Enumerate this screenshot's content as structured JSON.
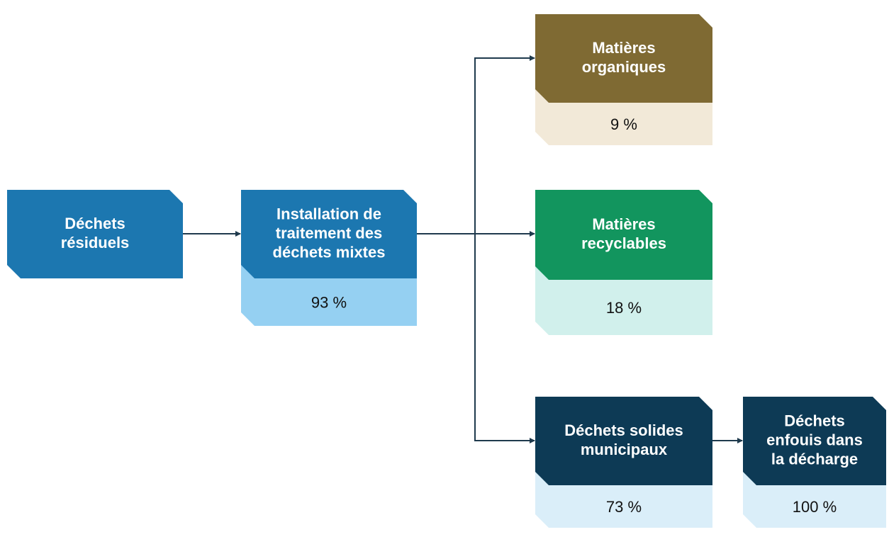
{
  "nodes": [
    {
      "label": [
        "Déchets",
        "résiduels"
      ]
    },
    {
      "label": [
        "Installation de",
        "traitement des",
        "déchets mixtes"
      ],
      "value": "93 %"
    },
    {
      "label": [
        "Matières",
        "organiques"
      ],
      "value": "9 %"
    },
    {
      "label": [
        "Matières",
        "recyclables"
      ],
      "value": "18 %"
    },
    {
      "label": [
        "Déchets solides",
        "municipaux"
      ],
      "value": "73 %"
    },
    {
      "label": [
        "Déchets",
        "enfouis dans",
        "la décharge"
      ],
      "value": "100 %"
    }
  ]
}
